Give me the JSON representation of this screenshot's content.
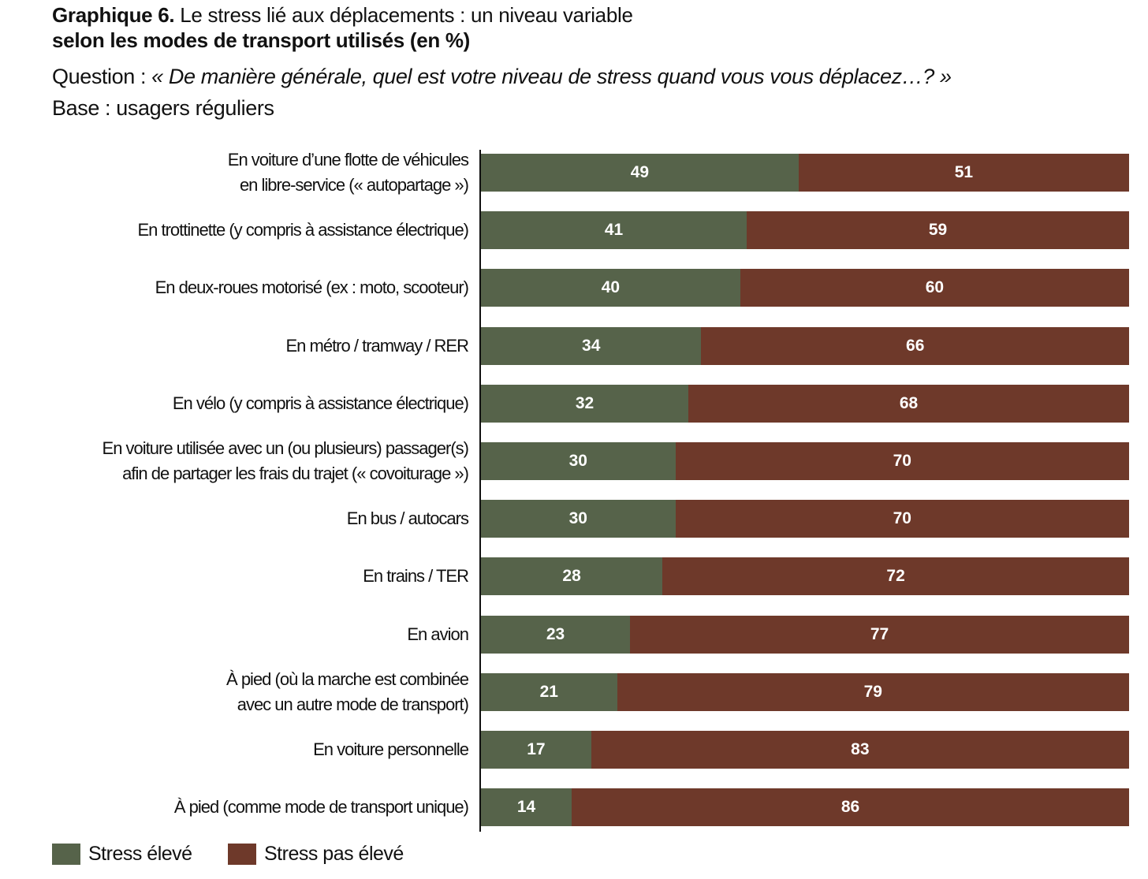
{
  "header": {
    "title_bold": "Graphique 6.",
    "title_line1": " Le stress lié aux déplacements : un niveau variable",
    "title_line2": "selon les modes de transport utilisés (en %)",
    "question_label": "Question : ",
    "question_text": "« De manière générale, quel est votre niveau de stress quand vous vous déplacez…? »",
    "base": "Base : usagers réguliers"
  },
  "colors": {
    "high": "#56634a",
    "not_high": "#6e392a"
  },
  "chart_data": {
    "type": "bar",
    "stacked": true,
    "orientation": "horizontal",
    "xlim": [
      0,
      100
    ],
    "categories": [
      [
        "En voiture d’une flotte de véhicules",
        "en libre-service (« autopartage »)"
      ],
      [
        "En trottinette (y compris à assistance électrique)"
      ],
      [
        "En deux-roues motorisé (ex : moto, scooteur)"
      ],
      [
        "En métro / tramway / RER"
      ],
      [
        "En vélo (y compris à assistance électrique)"
      ],
      [
        "En voiture utilisée avec un (ou plusieurs) passager(s)",
        "afin de partager les frais du trajet (« covoiturage »)"
      ],
      [
        "En bus / autocars"
      ],
      [
        "En trains / TER"
      ],
      [
        "En avion"
      ],
      [
        "À pied (où la marche est combinée",
        "avec un autre mode de transport)"
      ],
      [
        "En voiture personnelle"
      ],
      [
        "À pied (comme mode de transport unique)"
      ]
    ],
    "series": [
      {
        "name": "Stress élevé",
        "values": [
          49,
          41,
          40,
          34,
          32,
          30,
          30,
          28,
          23,
          21,
          17,
          14
        ]
      },
      {
        "name": "Stress pas élevé",
        "values": [
          51,
          59,
          60,
          66,
          68,
          70,
          70,
          72,
          77,
          79,
          83,
          86
        ]
      }
    ],
    "legend": "bottom-left"
  }
}
